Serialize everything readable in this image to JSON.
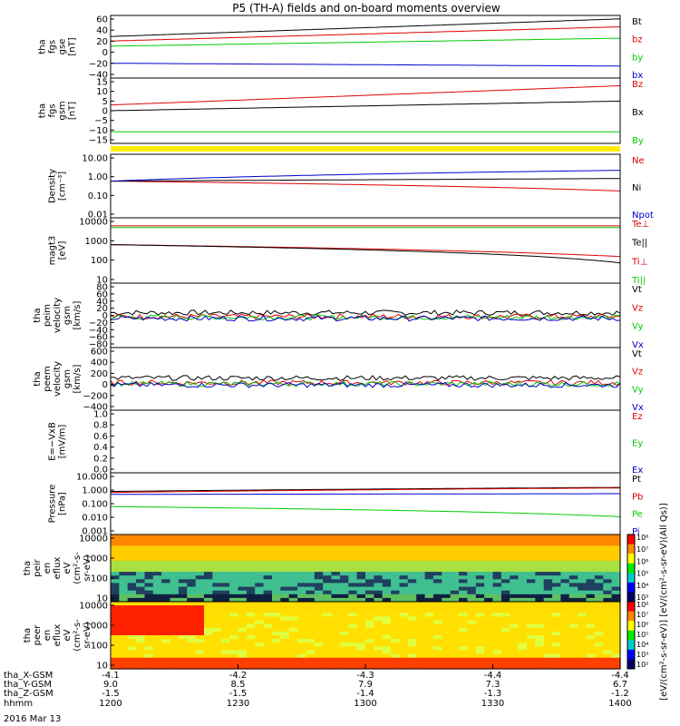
{
  "title": "P5 (TH-A) fields and on-board moments overview",
  "date_label": "2016 Mar 13",
  "colors": {
    "black": "#000000",
    "red": "#dd0000",
    "green": "#00cc00",
    "blue": "#0000cc",
    "yellow": "#ffee00"
  },
  "chart_data": {
    "type": "line",
    "x_axis": {
      "label": "hhmm",
      "ticks": [
        "1200",
        "1230",
        "1300",
        "1330",
        "1400"
      ],
      "orbit_rows": [
        {
          "label": "tha_X-GSM",
          "values": [
            "-4.1",
            "-4.2",
            "-4.3",
            "-4.4",
            "-4.4"
          ]
        },
        {
          "label": "tha_Y-GSM",
          "values": [
            "9.0",
            "8.5",
            "7.9",
            "7.3",
            "6.7"
          ]
        },
        {
          "label": "tha_Z-GSM",
          "values": [
            "-1.5",
            "-1.5",
            "-1.4",
            "-1.3",
            "-1.2"
          ]
        }
      ]
    },
    "panels": [
      {
        "id": "fgs-gse",
        "ylabel": [
          "tha",
          "fgs",
          "gse",
          "[nT]"
        ],
        "ylim": [
          -40,
          70
        ],
        "yticks": [
          "60",
          "40",
          "20",
          "0",
          "−20",
          "−40"
        ],
        "series": [
          {
            "name": "Bt",
            "color": "black",
            "start": 33,
            "end": 64
          },
          {
            "name": "bz",
            "color": "red",
            "start": 25,
            "end": 50
          },
          {
            "name": "by",
            "color": "green",
            "start": 16,
            "end": 30
          },
          {
            "name": "bx",
            "color": "blue",
            "start": -14,
            "end": -19
          }
        ]
      },
      {
        "id": "fgs-gsm",
        "ylabel": [
          "tha",
          "fgs",
          "gsm",
          "[nT]"
        ],
        "ylim": [
          -18,
          16
        ],
        "yticks": [
          "15",
          "10",
          "5",
          "0",
          "−5",
          "−10",
          "−15"
        ],
        "series": [
          {
            "name": "Bz",
            "color": "red",
            "start": 2,
            "end": 12
          },
          {
            "name": "Bx",
            "color": "black",
            "start": -1,
            "end": 4
          },
          {
            "name": "By",
            "color": "green",
            "start": -12,
            "end": -12
          }
        ]
      },
      {
        "id": "quality-bar",
        "ylabel": [],
        "yticks": [],
        "series": []
      },
      {
        "id": "density",
        "ylabel": [
          "Density",
          "[cm⁻³]"
        ],
        "ylim": [
          0.01,
          12
        ],
        "log": true,
        "yticks": [
          "10.00",
          "1.00",
          "0.10",
          "0.01"
        ],
        "series": [
          {
            "name": "Ne",
            "color": "red",
            "start": 0.6,
            "end": 0.2
          },
          {
            "name": "Ni",
            "color": "black",
            "start": 0.6,
            "end": 0.8
          },
          {
            "name": "Npot",
            "color": "blue",
            "start": 0.6,
            "end": 2.0
          }
        ]
      },
      {
        "id": "temperature",
        "ylabel": [
          "magt3",
          "[eV]"
        ],
        "ylim": [
          10,
          12000
        ],
        "log": true,
        "yticks": [
          "10000",
          "1000",
          "100",
          "10"
        ],
        "series": [
          {
            "name": "Te⊥",
            "color": "red",
            "start": 650,
            "end": 180
          },
          {
            "name": "Te||",
            "color": "black",
            "start": 650,
            "end": 90
          },
          {
            "name": "Ti⊥",
            "color": "red",
            "start": 5000,
            "end": 5000
          },
          {
            "name": "Ti||",
            "color": "green",
            "start": 4200,
            "end": 4200
          }
        ]
      },
      {
        "id": "peim-velocity",
        "ylabel": [
          "tha",
          "peim",
          "velocity",
          "gsm",
          "[km/s]"
        ],
        "ylim": [
          -80,
          90
        ],
        "yticks": [
          "80",
          "60",
          "40",
          "20",
          "0",
          "−20",
          "−40",
          "−60",
          "−80"
        ],
        "series": [
          {
            "name": "Vt",
            "color": "black",
            "start": 12,
            "end": 12
          },
          {
            "name": "Vz",
            "color": "red",
            "start": 2,
            "end": 2
          },
          {
            "name": "Vy",
            "color": "green",
            "start": 0,
            "end": 0
          },
          {
            "name": "Vx",
            "color": "blue",
            "start": -3,
            "end": -3
          }
        ]
      },
      {
        "id": "peem-velocity",
        "ylabel": [
          "tha",
          "peem",
          "velocity",
          "gsm",
          "[km/s]"
        ],
        "ylim": [
          -450,
          620
        ],
        "yticks": [
          "600",
          "400",
          "200",
          "0",
          "−200",
          "−400"
        ],
        "series": [
          {
            "name": "Vt",
            "color": "black",
            "start": 100,
            "end": 100
          },
          {
            "name": "Vz",
            "color": "red",
            "start": 20,
            "end": 20
          },
          {
            "name": "Vy",
            "color": "green",
            "start": 0,
            "end": 0
          },
          {
            "name": "Vx",
            "color": "blue",
            "start": -20,
            "end": -20
          }
        ]
      },
      {
        "id": "efield",
        "ylabel": [
          "E=−VxB",
          "[mV/m]"
        ],
        "ylim": [
          0,
          1
        ],
        "yticks": [
          "1.0",
          "0.8",
          "0.6",
          "0.4",
          "0.2",
          "0.0"
        ],
        "series": [
          {
            "name": "Ez",
            "color": "red"
          },
          {
            "name": "Ey",
            "color": "green"
          },
          {
            "name": "Ex",
            "color": "blue"
          }
        ]
      },
      {
        "id": "pressure",
        "ylabel": [
          "Pressure",
          "[nPa]"
        ],
        "ylim": [
          0.001,
          12
        ],
        "log": true,
        "yticks": [
          "10.000",
          "1.000",
          "0.100",
          "0.010",
          "0.001"
        ],
        "series": [
          {
            "name": "Pt",
            "color": "black",
            "start": 0.7,
            "end": 1.3
          },
          {
            "name": "Pb",
            "color": "red",
            "start": 0.6,
            "end": 1.2
          },
          {
            "name": "Pe",
            "color": "green",
            "start": 0.07,
            "end": 0.015
          },
          {
            "name": "Pi",
            "color": "blue",
            "start": 0.45,
            "end": 0.5
          }
        ]
      },
      {
        "id": "peir-spectrogram",
        "type": "heatmap",
        "ylabel": [
          "tha",
          "peir",
          "en",
          "eflux",
          "eV",
          "(cm²-s-",
          "sr-eV)"
        ],
        "yticks": [
          "10000",
          "1000",
          "100",
          "10"
        ]
      },
      {
        "id": "peer-spectrogram",
        "type": "heatmap",
        "ylabel": [
          "tha",
          "peer",
          "en",
          "eflux",
          "eV",
          "(cm²-s-",
          "sr-eV)"
        ],
        "yticks": [
          "10000",
          "1000",
          "100",
          "10"
        ]
      }
    ],
    "colorbar": {
      "label": "[eV/(cm²-s-sr-eV)] [eV/(cm²-s-sr-eV)(All Qs)]",
      "top_ticks": [
        "10⁸",
        "10⁷",
        "10⁶",
        "10⁵",
        "10⁴",
        "10³"
      ],
      "bottom_ticks": [
        "10⁸",
        "10⁷",
        "10⁶",
        "10⁵",
        "10⁴",
        "10³",
        "10²"
      ]
    }
  }
}
